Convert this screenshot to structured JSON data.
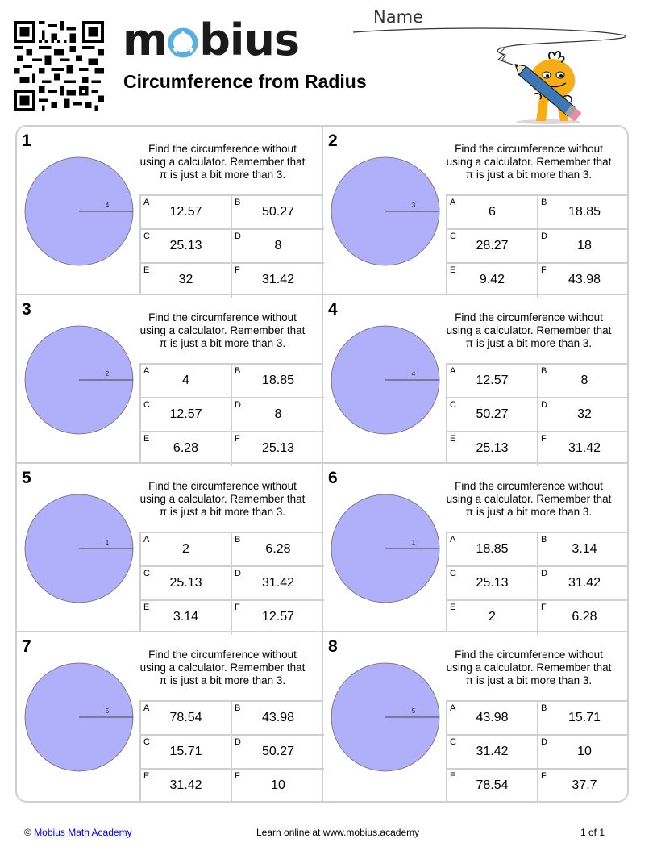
{
  "header": {
    "brand": "mobius",
    "title": "Circumference from Radius",
    "name_label": "Name",
    "accent_color": "#5aafe0"
  },
  "instruction": "Find the circumference without using a calculator. Remember that π is just a bit more than 3.",
  "circle_color": "#b0b0fa",
  "questions": [
    {
      "number": "1",
      "radius": "4",
      "answers": [
        {
          "letter": "A",
          "value": "12.57"
        },
        {
          "letter": "B",
          "value": "50.27"
        },
        {
          "letter": "C",
          "value": "25.13"
        },
        {
          "letter": "D",
          "value": "8"
        },
        {
          "letter": "E",
          "value": "32"
        },
        {
          "letter": "F",
          "value": "31.42"
        }
      ]
    },
    {
      "number": "2",
      "radius": "3",
      "answers": [
        {
          "letter": "A",
          "value": "6"
        },
        {
          "letter": "B",
          "value": "18.85"
        },
        {
          "letter": "C",
          "value": "28.27"
        },
        {
          "letter": "D",
          "value": "18"
        },
        {
          "letter": "E",
          "value": "9.42"
        },
        {
          "letter": "F",
          "value": "43.98"
        }
      ]
    },
    {
      "number": "3",
      "radius": "2",
      "answers": [
        {
          "letter": "A",
          "value": "4"
        },
        {
          "letter": "B",
          "value": "18.85"
        },
        {
          "letter": "C",
          "value": "12.57"
        },
        {
          "letter": "D",
          "value": "8"
        },
        {
          "letter": "E",
          "value": "6.28"
        },
        {
          "letter": "F",
          "value": "25.13"
        }
      ]
    },
    {
      "number": "4",
      "radius": "4",
      "answers": [
        {
          "letter": "A",
          "value": "12.57"
        },
        {
          "letter": "B",
          "value": "8"
        },
        {
          "letter": "C",
          "value": "50.27"
        },
        {
          "letter": "D",
          "value": "32"
        },
        {
          "letter": "E",
          "value": "25.13"
        },
        {
          "letter": "F",
          "value": "31.42"
        }
      ]
    },
    {
      "number": "5",
      "radius": "1",
      "answers": [
        {
          "letter": "A",
          "value": "2"
        },
        {
          "letter": "B",
          "value": "6.28"
        },
        {
          "letter": "C",
          "value": "25.13"
        },
        {
          "letter": "D",
          "value": "31.42"
        },
        {
          "letter": "E",
          "value": "3.14"
        },
        {
          "letter": "F",
          "value": "12.57"
        }
      ]
    },
    {
      "number": "6",
      "radius": "1",
      "answers": [
        {
          "letter": "A",
          "value": "18.85"
        },
        {
          "letter": "B",
          "value": "3.14"
        },
        {
          "letter": "C",
          "value": "25.13"
        },
        {
          "letter": "D",
          "value": "31.42"
        },
        {
          "letter": "E",
          "value": "2"
        },
        {
          "letter": "F",
          "value": "6.28"
        }
      ]
    },
    {
      "number": "7",
      "radius": "5",
      "answers": [
        {
          "letter": "A",
          "value": "78.54"
        },
        {
          "letter": "B",
          "value": "43.98"
        },
        {
          "letter": "C",
          "value": "15.71"
        },
        {
          "letter": "D",
          "value": "50.27"
        },
        {
          "letter": "E",
          "value": "31.42"
        },
        {
          "letter": "F",
          "value": "10"
        }
      ]
    },
    {
      "number": "8",
      "radius": "5",
      "answers": [
        {
          "letter": "A",
          "value": "43.98"
        },
        {
          "letter": "B",
          "value": "15.71"
        },
        {
          "letter": "C",
          "value": "31.42"
        },
        {
          "letter": "D",
          "value": "10"
        },
        {
          "letter": "E",
          "value": "78.54"
        },
        {
          "letter": "F",
          "value": "37.7"
        }
      ]
    }
  ],
  "footer": {
    "copyright": "©",
    "link_text": "Mobius Math Academy",
    "center": "Learn online at www.mobius.academy",
    "page": "1 of 1"
  }
}
